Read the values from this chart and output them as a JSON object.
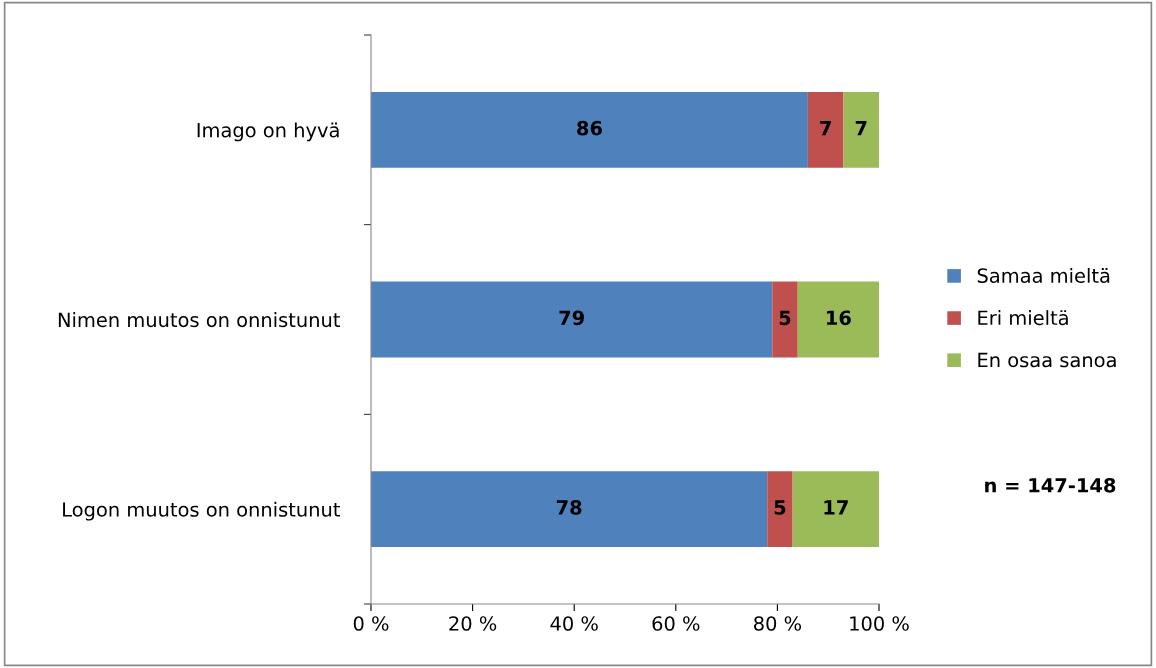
{
  "chart_data": {
    "type": "bar",
    "orientation": "horizontal",
    "stacked": true,
    "data_labels": true,
    "categories": [
      "Imago on hyvä",
      "Nimen muutos on onnistunut",
      "Logon muutos on onnistunut"
    ],
    "series": [
      {
        "name": "Samaa mieltä",
        "color": "#4f81bd",
        "values": [
          86,
          79,
          78
        ]
      },
      {
        "name": "Eri mieltä",
        "color": "#c0504d",
        "values": [
          7,
          5,
          5
        ]
      },
      {
        "name": "En osaa sanoa",
        "color": "#9bbb59",
        "values": [
          7,
          16,
          17
        ]
      }
    ],
    "xlim": [
      0,
      100
    ],
    "xticks": [
      {
        "value": 0,
        "label": "0 %"
      },
      {
        "value": 20,
        "label": "20 %"
      },
      {
        "value": 40,
        "label": "40 %"
      },
      {
        "value": 60,
        "label": "60 %"
      },
      {
        "value": 80,
        "label": "80 %"
      },
      {
        "value": 100,
        "label": "100 %"
      }
    ],
    "grid": false,
    "legend": "right",
    "annotations": [
      "n = 147-148"
    ]
  }
}
